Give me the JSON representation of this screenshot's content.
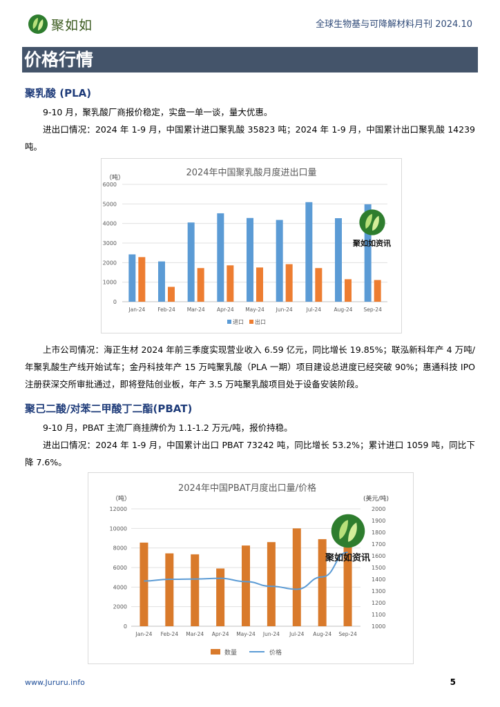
{
  "header": {
    "logo_text": "聚如如",
    "title": "全球生物基与可降解材料月刊 2024.10"
  },
  "section_title": "价格行情",
  "pla": {
    "heading": "聚乳酸 (PLA)",
    "p1": "9-10 月，聚乳酸厂商报价稳定，实盘一单一谈，量大优惠。",
    "p2": "进出口情况：2024 年 1-9 月，中国累计进口聚乳酸 35823 吨；2024 年 1-9 月，中国累计出口聚乳酸 14239 吨。",
    "p3": "上市公司情况：海正生材 2024 年前三季度实现营业收入 6.59 亿元，同比增长 19.85%；联泓新科年产 4 万吨/年聚乳酸生产线开始试车；金丹科技年产 15 万吨聚乳酸（PLA 一期）项目建设总进度已经突破 90%；惠通科技 IPO 注册获深交所审批通过，即将登陆创业板，年产 3.5 万吨聚乳酸项目处于设备安装阶段。"
  },
  "pbat": {
    "heading": "聚己二酸/对苯二甲酸丁二酯(PBAT)",
    "p1": "9-10 月，PBAT 主流厂商挂牌价为 1.1-1.2 万元/吨，报价持稳。",
    "p2": "进出口情况：2024 年 1-9 月，中国累计出口 PBAT 73242 吨，同比增长 53.2%；累计进口 1059 吨，同比下降 7.6%。"
  },
  "watermark_text": "聚如如资讯",
  "chart_data": [
    {
      "type": "bar",
      "title": "2024年中国聚乳酸月度进出口量",
      "ylabel": "（吨）",
      "categories": [
        "Jan-24",
        "Feb-24",
        "Mar-24",
        "Apr-24",
        "May-24",
        "Jun-24",
        "Jul-24",
        "Aug-24",
        "Sep-24"
      ],
      "ylim": [
        0,
        6000
      ],
      "yticks": [
        0,
        1000,
        2000,
        3000,
        4000,
        5000,
        6000
      ],
      "series": [
        {
          "name": "进口",
          "values": [
            2420,
            2060,
            4050,
            4520,
            4280,
            4180,
            5090,
            4270,
            4980
          ],
          "color": "#5b9bd5"
        },
        {
          "name": "出口",
          "values": [
            2280,
            760,
            1720,
            1860,
            1750,
            1920,
            1720,
            1150,
            1110
          ],
          "color": "#ed7d31"
        }
      ],
      "legend": "bottom",
      "grid": true
    },
    {
      "type": "bar",
      "title": "2024年中国PBAT月度出口量/价格",
      "ylabel": "（吨）",
      "y2label": "(美元/吨)",
      "categories": [
        "Jan-24",
        "Feb-24",
        "Mar-24",
        "Apr-24",
        "May-24",
        "Jun-24",
        "Jul-24",
        "Aug-24",
        "Sep-24"
      ],
      "ylim": [
        0,
        12000
      ],
      "yticks": [
        0,
        2000,
        4000,
        6000,
        8000,
        10000,
        12000
      ],
      "y2lim": [
        1000,
        2000
      ],
      "y2ticks": [
        1000,
        1100,
        1200,
        1300,
        1400,
        1500,
        1600,
        1700,
        1800,
        1900,
        2000
      ],
      "series": [
        {
          "name": "数量",
          "type": "bar",
          "axis": "left",
          "values": [
            8550,
            7450,
            7350,
            5900,
            8250,
            8600,
            10000,
            8900,
            8100
          ],
          "color": "#d97a2b"
        },
        {
          "name": "价格",
          "type": "line",
          "axis": "right",
          "values": [
            1385,
            1400,
            1402,
            1408,
            1380,
            1340,
            1315,
            1420,
            1630
          ],
          "color": "#5b9bd5"
        }
      ],
      "legend": "bottom",
      "grid": true
    }
  ],
  "footer": {
    "url": "www.Jururu.info",
    "page": "5"
  }
}
